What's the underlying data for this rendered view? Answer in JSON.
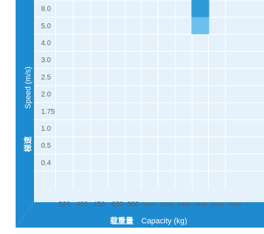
{
  "chart_data": {
    "type": "heatmap",
    "y_axis": {
      "label_cn": "梯速",
      "label_en": "Speed (m/s)",
      "ticks": [
        "8.0",
        "5.0",
        "4.0",
        "3.0",
        "2.5",
        "2.0",
        "1.75",
        "1.0",
        "0.5",
        "0.4"
      ]
    },
    "x_axis": {
      "label_cn": "载重量",
      "label_en": "Capacity (kg)",
      "ticks": [
        "320",
        "400",
        "450",
        "630",
        "800",
        "1000",
        "1150",
        "1350",
        "1600",
        "2000",
        "2500"
      ]
    },
    "cells": [
      {
        "capacity": "1600",
        "speed": "8.0",
        "shade": "dark"
      },
      {
        "capacity": "1600",
        "speed": "5.0",
        "shade": "light"
      }
    ],
    "grid": true,
    "colors": {
      "frame": "#1e8bd0",
      "plot_bg": "#e6f2fb",
      "grid": "#ffffff",
      "tick_text": "#5a6470",
      "axis_text": "#ffffff",
      "cell_dark": "#2d9ad8",
      "cell_light": "#6cc0ec"
    }
  }
}
